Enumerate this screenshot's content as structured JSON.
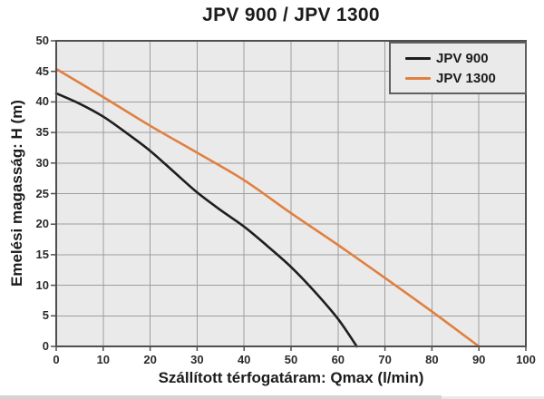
{
  "chart_data": {
    "type": "line",
    "title": "JPV 900 / JPV 1300",
    "xlabel": "Szállított térfogatáram: Qmax (l/min)",
    "ylabel": "Emelési magasság: H (m)",
    "xlim": [
      0,
      100
    ],
    "ylim": [
      0,
      50
    ],
    "xticks": [
      0,
      10,
      20,
      30,
      40,
      50,
      60,
      70,
      80,
      90,
      100
    ],
    "yticks": [
      0,
      5,
      10,
      15,
      20,
      25,
      30,
      35,
      40,
      45,
      50
    ],
    "grid": true,
    "legend_position": "top-right",
    "colors": {
      "plot_background": "#eaeaea",
      "gridline": "#9e9e9e",
      "axis_border": "#4f4f4f",
      "tick": "#4f4f4f"
    },
    "series": [
      {
        "name": "JPV 900",
        "color": "#1e1e1e",
        "points": [
          [
            0,
            41.4
          ],
          [
            5,
            39.7
          ],
          [
            10,
            37.6
          ],
          [
            15,
            34.9
          ],
          [
            20,
            32.0
          ],
          [
            25,
            28.6
          ],
          [
            30,
            25.2
          ],
          [
            35,
            22.3
          ],
          [
            40,
            19.6
          ],
          [
            45,
            16.4
          ],
          [
            50,
            13.0
          ],
          [
            55,
            9.0
          ],
          [
            60,
            4.5
          ],
          [
            64,
            0
          ]
        ]
      },
      {
        "name": "JPV 1300",
        "color": "#E08040",
        "points": [
          [
            0,
            45.4
          ],
          [
            10,
            40.8
          ],
          [
            20,
            36.1
          ],
          [
            30,
            31.7
          ],
          [
            40,
            27.2
          ],
          [
            50,
            21.8
          ],
          [
            60,
            16.6
          ],
          [
            70,
            11.2
          ],
          [
            80,
            5.7
          ],
          [
            90,
            0
          ]
        ]
      }
    ]
  }
}
